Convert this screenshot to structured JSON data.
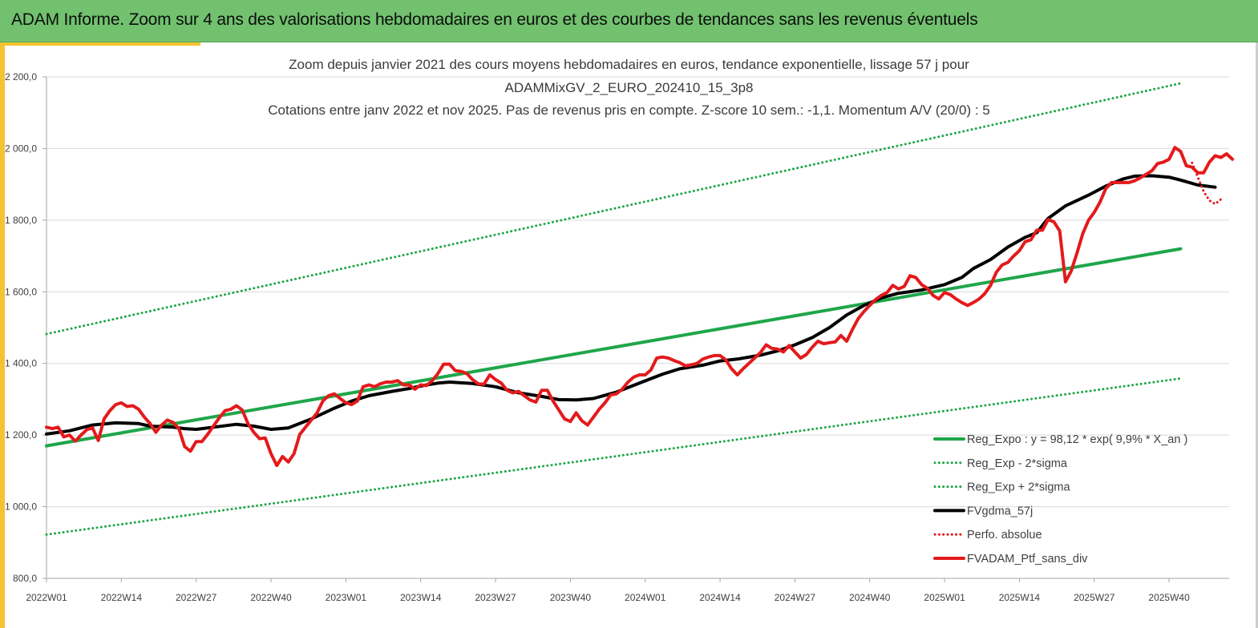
{
  "banner": {
    "title": "ADAM Informe. Zoom sur 4 ans des valorisations hebdomadaires en euros et des courbes de tendances sans les revenus éventuels",
    "color": "#71c16e"
  },
  "chart_data": {
    "type": "line",
    "title_lines": [
      "Zoom depuis janvier 2021 des cours moyens hebdomadaires  en euros, tendance exponentielle, lissage 57 j pour",
      "ADAMMixGV_2_EURO_202410_15_3p8",
      "Cotations  entre janv 2022 et nov 2025. Pas de revenus pris en compte. Z-score 10 sem.: -1,1. Momentum A/V (20/0) : 5"
    ],
    "xlabel": "",
    "ylabel": "",
    "ylim": [
      800,
      2200
    ],
    "y_ticks": [
      800,
      1000,
      1200,
      1400,
      1600,
      1800,
      2000,
      2200
    ],
    "y_tick_labels": [
      "800,0",
      "1 000,0",
      "1 200,0",
      "1 400,0",
      "1 600,0",
      "1 800,0",
      "2 000,0",
      "2 200,0"
    ],
    "x_range_weeks": [
      0,
      197
    ],
    "x_ticks": [
      0,
      13,
      26,
      39,
      52,
      65,
      78,
      91,
      104,
      117,
      130,
      143,
      156,
      169,
      182,
      195
    ],
    "x_tick_labels": [
      "2022W01",
      "2022W14",
      "2022W27",
      "2022W40",
      "2023W01",
      "2023W14",
      "2023W27",
      "2023W40",
      "2024W01",
      "2024W14",
      "2024W27",
      "2024W40",
      "2025W01",
      "2025W14",
      "2025W27",
      "2025W40"
    ],
    "grid": "horizontal",
    "legend_position": "bottom-right",
    "series": [
      {
        "name": "Reg_Expo : y = 98,12 * exp( 9,9% *  X_an )",
        "color": "#1fa64a",
        "style": "solid",
        "points": [
          [
            0,
            1170
          ],
          [
            197,
            1720
          ]
        ]
      },
      {
        "name": "Reg_Exp - 2*sigma",
        "color": "#1fa64a",
        "style": "dotted",
        "points": [
          [
            0,
            922
          ],
          [
            197,
            1358
          ]
        ]
      },
      {
        "name": "Reg_Exp + 2*sigma",
        "color": "#1fa64a",
        "style": "dotted",
        "points": [
          [
            0,
            1482
          ],
          [
            197,
            2182
          ]
        ]
      },
      {
        "name": "FVgdma_57j",
        "color": "#000000",
        "style": "solid",
        "points": [
          [
            0,
            1203
          ],
          [
            4,
            1212
          ],
          [
            8,
            1228
          ],
          [
            12,
            1234
          ],
          [
            16,
            1232
          ],
          [
            18,
            1225
          ],
          [
            22,
            1222
          ],
          [
            24,
            1218
          ],
          [
            26,
            1216
          ],
          [
            29,
            1222
          ],
          [
            33,
            1230
          ],
          [
            36,
            1225
          ],
          [
            39,
            1216
          ],
          [
            42,
            1220
          ],
          [
            46,
            1245
          ],
          [
            50,
            1275
          ],
          [
            53,
            1295
          ],
          [
            56,
            1310
          ],
          [
            60,
            1322
          ],
          [
            63,
            1330
          ],
          [
            66,
            1340
          ],
          [
            68,
            1345
          ],
          [
            70,
            1348
          ],
          [
            74,
            1344
          ],
          [
            78,
            1335
          ],
          [
            82,
            1318
          ],
          [
            86,
            1308
          ],
          [
            89,
            1299
          ],
          [
            92,
            1298
          ],
          [
            95,
            1302
          ],
          [
            99,
            1320
          ],
          [
            103,
            1345
          ],
          [
            107,
            1370
          ],
          [
            110,
            1385
          ],
          [
            114,
            1395
          ],
          [
            117,
            1407
          ],
          [
            120,
            1412
          ],
          [
            124,
            1423
          ],
          [
            127,
            1435
          ],
          [
            130,
            1452
          ],
          [
            133,
            1472
          ],
          [
            136,
            1500
          ],
          [
            139,
            1535
          ],
          [
            142,
            1562
          ],
          [
            145,
            1583
          ],
          [
            148,
            1596
          ],
          [
            152,
            1605
          ],
          [
            156,
            1620
          ],
          [
            159,
            1640
          ],
          [
            161,
            1665
          ],
          [
            164,
            1690
          ],
          [
            167,
            1725
          ],
          [
            170,
            1752
          ],
          [
            172,
            1765
          ],
          [
            174,
            1805
          ],
          [
            177,
            1840
          ],
          [
            181,
            1870
          ],
          [
            184,
            1895
          ],
          [
            187,
            1915
          ],
          [
            189,
            1923
          ],
          [
            192,
            1924
          ],
          [
            195,
            1920
          ],
          [
            197,
            1912
          ],
          [
            200,
            1898
          ],
          [
            203,
            1892
          ]
        ]
      },
      {
        "name": "Perfo. absolue",
        "color": "#e31a1c",
        "style": "dotted",
        "points": [
          [
            199,
            1960
          ],
          [
            200,
            1920
          ],
          [
            201,
            1880
          ],
          [
            202,
            1855
          ],
          [
            203,
            1845
          ],
          [
            204,
            1858
          ]
        ]
      },
      {
        "name": "FVADAM_Ptf_sans_div",
        "color": "#e31a1c",
        "style": "solid",
        "points": [
          [
            0,
            1222
          ],
          [
            1,
            1218
          ],
          [
            2,
            1222
          ],
          [
            3,
            1195
          ],
          [
            4,
            1200
          ],
          [
            5,
            1183
          ],
          [
            6,
            1200
          ],
          [
            7,
            1215
          ],
          [
            8,
            1220
          ],
          [
            9,
            1185
          ],
          [
            10,
            1245
          ],
          [
            11,
            1268
          ],
          [
            12,
            1285
          ],
          [
            13,
            1290
          ],
          [
            14,
            1280
          ],
          [
            15,
            1282
          ],
          [
            16,
            1272
          ],
          [
            17,
            1250
          ],
          [
            18,
            1232
          ],
          [
            19,
            1208
          ],
          [
            20,
            1228
          ],
          [
            21,
            1242
          ],
          [
            22,
            1235
          ],
          [
            23,
            1218
          ],
          [
            24,
            1168
          ],
          [
            25,
            1155
          ],
          [
            26,
            1182
          ],
          [
            27,
            1182
          ],
          [
            28,
            1202
          ],
          [
            29,
            1225
          ],
          [
            30,
            1248
          ],
          [
            31,
            1268
          ],
          [
            32,
            1272
          ],
          [
            33,
            1282
          ],
          [
            34,
            1270
          ],
          [
            35,
            1232
          ],
          [
            36,
            1208
          ],
          [
            37,
            1190
          ],
          [
            38,
            1192
          ],
          [
            39,
            1148
          ],
          [
            40,
            1115
          ],
          [
            41,
            1140
          ],
          [
            42,
            1125
          ],
          [
            43,
            1148
          ],
          [
            44,
            1202
          ],
          [
            45,
            1222
          ],
          [
            46,
            1242
          ],
          [
            47,
            1262
          ],
          [
            48,
            1295
          ],
          [
            49,
            1310
          ],
          [
            50,
            1315
          ],
          [
            51,
            1302
          ],
          [
            52,
            1290
          ],
          [
            53,
            1285
          ],
          [
            54,
            1295
          ],
          [
            55,
            1335
          ],
          [
            56,
            1340
          ],
          [
            57,
            1335
          ],
          [
            58,
            1343
          ],
          [
            59,
            1348
          ],
          [
            60,
            1348
          ],
          [
            61,
            1352
          ],
          [
            62,
            1340
          ],
          [
            63,
            1340
          ],
          [
            64,
            1328
          ],
          [
            65,
            1340
          ],
          [
            66,
            1338
          ],
          [
            67,
            1352
          ],
          [
            68,
            1372
          ],
          [
            69,
            1398
          ],
          [
            70,
            1398
          ],
          [
            71,
            1380
          ],
          [
            72,
            1378
          ],
          [
            73,
            1372
          ],
          [
            74,
            1355
          ],
          [
            75,
            1343
          ],
          [
            76,
            1342
          ],
          [
            77,
            1368
          ],
          [
            78,
            1355
          ],
          [
            79,
            1345
          ],
          [
            80,
            1325
          ],
          [
            81,
            1318
          ],
          [
            82,
            1322
          ],
          [
            83,
            1310
          ],
          [
            84,
            1298
          ],
          [
            85,
            1292
          ],
          [
            86,
            1325
          ],
          [
            87,
            1325
          ],
          [
            88,
            1295
          ],
          [
            89,
            1270
          ],
          [
            90,
            1245
          ],
          [
            91,
            1238
          ],
          [
            92,
            1262
          ],
          [
            93,
            1240
          ],
          [
            94,
            1228
          ],
          [
            95,
            1250
          ],
          [
            96,
            1272
          ],
          [
            97,
            1290
          ],
          [
            98,
            1312
          ],
          [
            99,
            1315
          ],
          [
            100,
            1328
          ],
          [
            101,
            1348
          ],
          [
            102,
            1362
          ],
          [
            103,
            1368
          ],
          [
            104,
            1368
          ],
          [
            105,
            1382
          ],
          [
            106,
            1415
          ],
          [
            107,
            1418
          ],
          [
            108,
            1415
          ],
          [
            109,
            1408
          ],
          [
            110,
            1402
          ],
          [
            111,
            1393
          ],
          [
            112,
            1396
          ],
          [
            113,
            1400
          ],
          [
            114,
            1412
          ],
          [
            115,
            1418
          ],
          [
            116,
            1422
          ],
          [
            117,
            1422
          ],
          [
            118,
            1410
          ],
          [
            119,
            1385
          ],
          [
            120,
            1368
          ],
          [
            121,
            1385
          ],
          [
            122,
            1400
          ],
          [
            123,
            1415
          ],
          [
            124,
            1430
          ],
          [
            125,
            1452
          ],
          [
            126,
            1442
          ],
          [
            127,
            1440
          ],
          [
            128,
            1432
          ],
          [
            129,
            1450
          ],
          [
            130,
            1432
          ],
          [
            131,
            1415
          ],
          [
            132,
            1425
          ],
          [
            133,
            1445
          ],
          [
            134,
            1462
          ],
          [
            135,
            1455
          ],
          [
            136,
            1458
          ],
          [
            137,
            1460
          ],
          [
            138,
            1478
          ],
          [
            139,
            1462
          ],
          [
            140,
            1495
          ],
          [
            141,
            1525
          ],
          [
            142,
            1545
          ],
          [
            143,
            1562
          ],
          [
            144,
            1578
          ],
          [
            145,
            1590
          ],
          [
            146,
            1598
          ],
          [
            147,
            1618
          ],
          [
            148,
            1608
          ],
          [
            149,
            1615
          ],
          [
            150,
            1645
          ],
          [
            151,
            1640
          ],
          [
            152,
            1620
          ],
          [
            153,
            1610
          ],
          [
            154,
            1590
          ],
          [
            155,
            1580
          ],
          [
            156,
            1598
          ],
          [
            157,
            1592
          ],
          [
            158,
            1580
          ],
          [
            159,
            1570
          ],
          [
            160,
            1562
          ],
          [
            161,
            1570
          ],
          [
            162,
            1580
          ],
          [
            163,
            1595
          ],
          [
            164,
            1618
          ],
          [
            165,
            1655
          ],
          [
            166,
            1675
          ],
          [
            167,
            1682
          ],
          [
            168,
            1700
          ],
          [
            169,
            1715
          ],
          [
            170,
            1740
          ],
          [
            171,
            1745
          ],
          [
            172,
            1772
          ],
          [
            173,
            1772
          ],
          [
            174,
            1802
          ],
          [
            175,
            1795
          ],
          [
            176,
            1770
          ],
          [
            177,
            1628
          ],
          [
            178,
            1658
          ],
          [
            179,
            1708
          ],
          [
            180,
            1762
          ],
          [
            181,
            1800
          ],
          [
            182,
            1822
          ],
          [
            183,
            1850
          ],
          [
            184,
            1888
          ],
          [
            185,
            1905
          ],
          [
            186,
            1905
          ],
          [
            187,
            1905
          ],
          [
            188,
            1905
          ],
          [
            189,
            1910
          ],
          [
            190,
            1918
          ],
          [
            191,
            1928
          ],
          [
            192,
            1938
          ],
          [
            193,
            1958
          ],
          [
            194,
            1962
          ],
          [
            195,
            1970
          ],
          [
            196,
            2003
          ],
          [
            197,
            1992
          ],
          [
            198,
            1952
          ],
          [
            199,
            1948
          ],
          [
            200,
            1932
          ],
          [
            201,
            1932
          ],
          [
            202,
            1962
          ],
          [
            203,
            1980
          ],
          [
            204,
            1975
          ],
          [
            205,
            1985
          ],
          [
            206,
            1970
          ]
        ]
      }
    ]
  },
  "legend": {
    "items": [
      "Reg_Expo : y = 98,12 * exp( 9,9% *  X_an )",
      "Reg_Exp - 2*sigma",
      "Reg_Exp + 2*sigma",
      "FVgdma_57j",
      "Perfo. absolue",
      "FVADAM_Ptf_sans_div"
    ]
  }
}
